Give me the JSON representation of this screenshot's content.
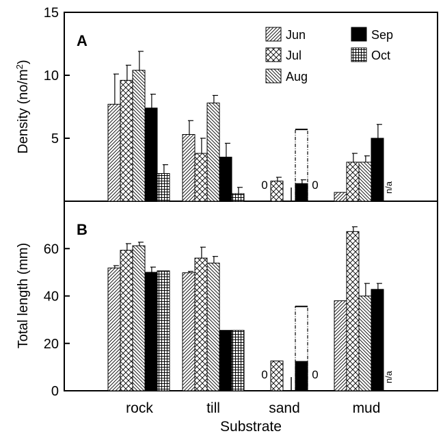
{
  "figure": {
    "xlabel": "Substrate",
    "categories": [
      "rock",
      "till",
      "sand",
      "mud"
    ],
    "months": [
      "Jun",
      "Jul",
      "Aug",
      "Sep",
      "Oct"
    ]
  },
  "chart_data": [
    {
      "type": "bar",
      "panel_label": "A",
      "ylabel": "Density (no/m²)",
      "ylabel_main": "Density (no/m",
      "ylabel_sup": "2",
      "ylabel_end": ")",
      "ylim": [
        0,
        15
      ],
      "yticks": [
        5,
        10,
        15
      ],
      "categories": [
        "rock",
        "till",
        "sand",
        "mud"
      ],
      "series": [
        {
          "name": "Jun",
          "pattern": "pat-jun",
          "values": [
            7.7,
            5.3,
            0,
            0.7
          ],
          "errors": [
            2.4,
            1.1,
            null,
            null
          ]
        },
        {
          "name": "Jul",
          "pattern": "pat-jul",
          "values": [
            9.6,
            3.8,
            1.6,
            3.1
          ],
          "errors": [
            1.2,
            1.2,
            0.3,
            0.7
          ]
        },
        {
          "name": "Aug",
          "pattern": "pat-aug",
          "values": [
            10.4,
            7.8,
            null,
            3.1
          ],
          "errors": [
            1.5,
            0.6,
            null,
            0.5
          ]
        },
        {
          "name": "Sep",
          "pattern": "pat-sep",
          "values": [
            7.4,
            3.5,
            1.4,
            5.0
          ],
          "errors": [
            1.1,
            1.1,
            0.3,
            1.1
          ]
        },
        {
          "name": "Oct",
          "pattern": "pat-oct",
          "values": [
            2.2,
            0.6,
            null,
            null
          ],
          "errors": [
            0.7,
            0.5,
            null,
            null
          ]
        }
      ],
      "sand_dashed_bar": 5.7,
      "annotations": [
        {
          "text": "0",
          "category": "sand",
          "series": "Jun"
        },
        {
          "text": "0",
          "category": "sand",
          "series": "Oct"
        },
        {
          "text": "n/a",
          "category": "mud",
          "series": "Oct"
        }
      ]
    },
    {
      "type": "bar",
      "panel_label": "B",
      "ylabel": "Total length (mm)",
      "ylim": [
        0,
        80
      ],
      "yticks": [
        0,
        20,
        40,
        60
      ],
      "categories": [
        "rock",
        "till",
        "sand",
        "mud"
      ],
      "series": [
        {
          "name": "Jun",
          "pattern": "pat-jun",
          "values": [
            51.8,
            49.8,
            0,
            38.0
          ],
          "errors": [
            1.0,
            0.6,
            null,
            null
          ]
        },
        {
          "name": "Jul",
          "pattern": "pat-jul",
          "values": [
            59.3,
            56.0,
            12.6,
            67.2
          ],
          "errors": [
            2.8,
            4.6,
            null,
            2.0
          ]
        },
        {
          "name": "Aug",
          "pattern": "pat-aug",
          "values": [
            61.2,
            53.9,
            null,
            40.0
          ],
          "errors": [
            1.5,
            2.8,
            null,
            5.3
          ]
        },
        {
          "name": "Sep",
          "pattern": "pat-sep",
          "values": [
            50.0,
            25.5,
            12.4,
            42.8
          ],
          "errors": [
            2.2,
            null,
            null,
            2.5
          ]
        },
        {
          "name": "Oct",
          "pattern": "pat-oct",
          "values": [
            50.6,
            25.5,
            null,
            null
          ],
          "errors": [
            null,
            null,
            null,
            null
          ]
        }
      ],
      "sand_dashed_bar": 35.6,
      "annotations": [
        {
          "text": "0",
          "category": "sand",
          "series": "Jun"
        },
        {
          "text": "0",
          "category": "sand",
          "series": "Oct"
        },
        {
          "text": "n/a",
          "category": "mud",
          "series": "Oct"
        }
      ]
    }
  ]
}
